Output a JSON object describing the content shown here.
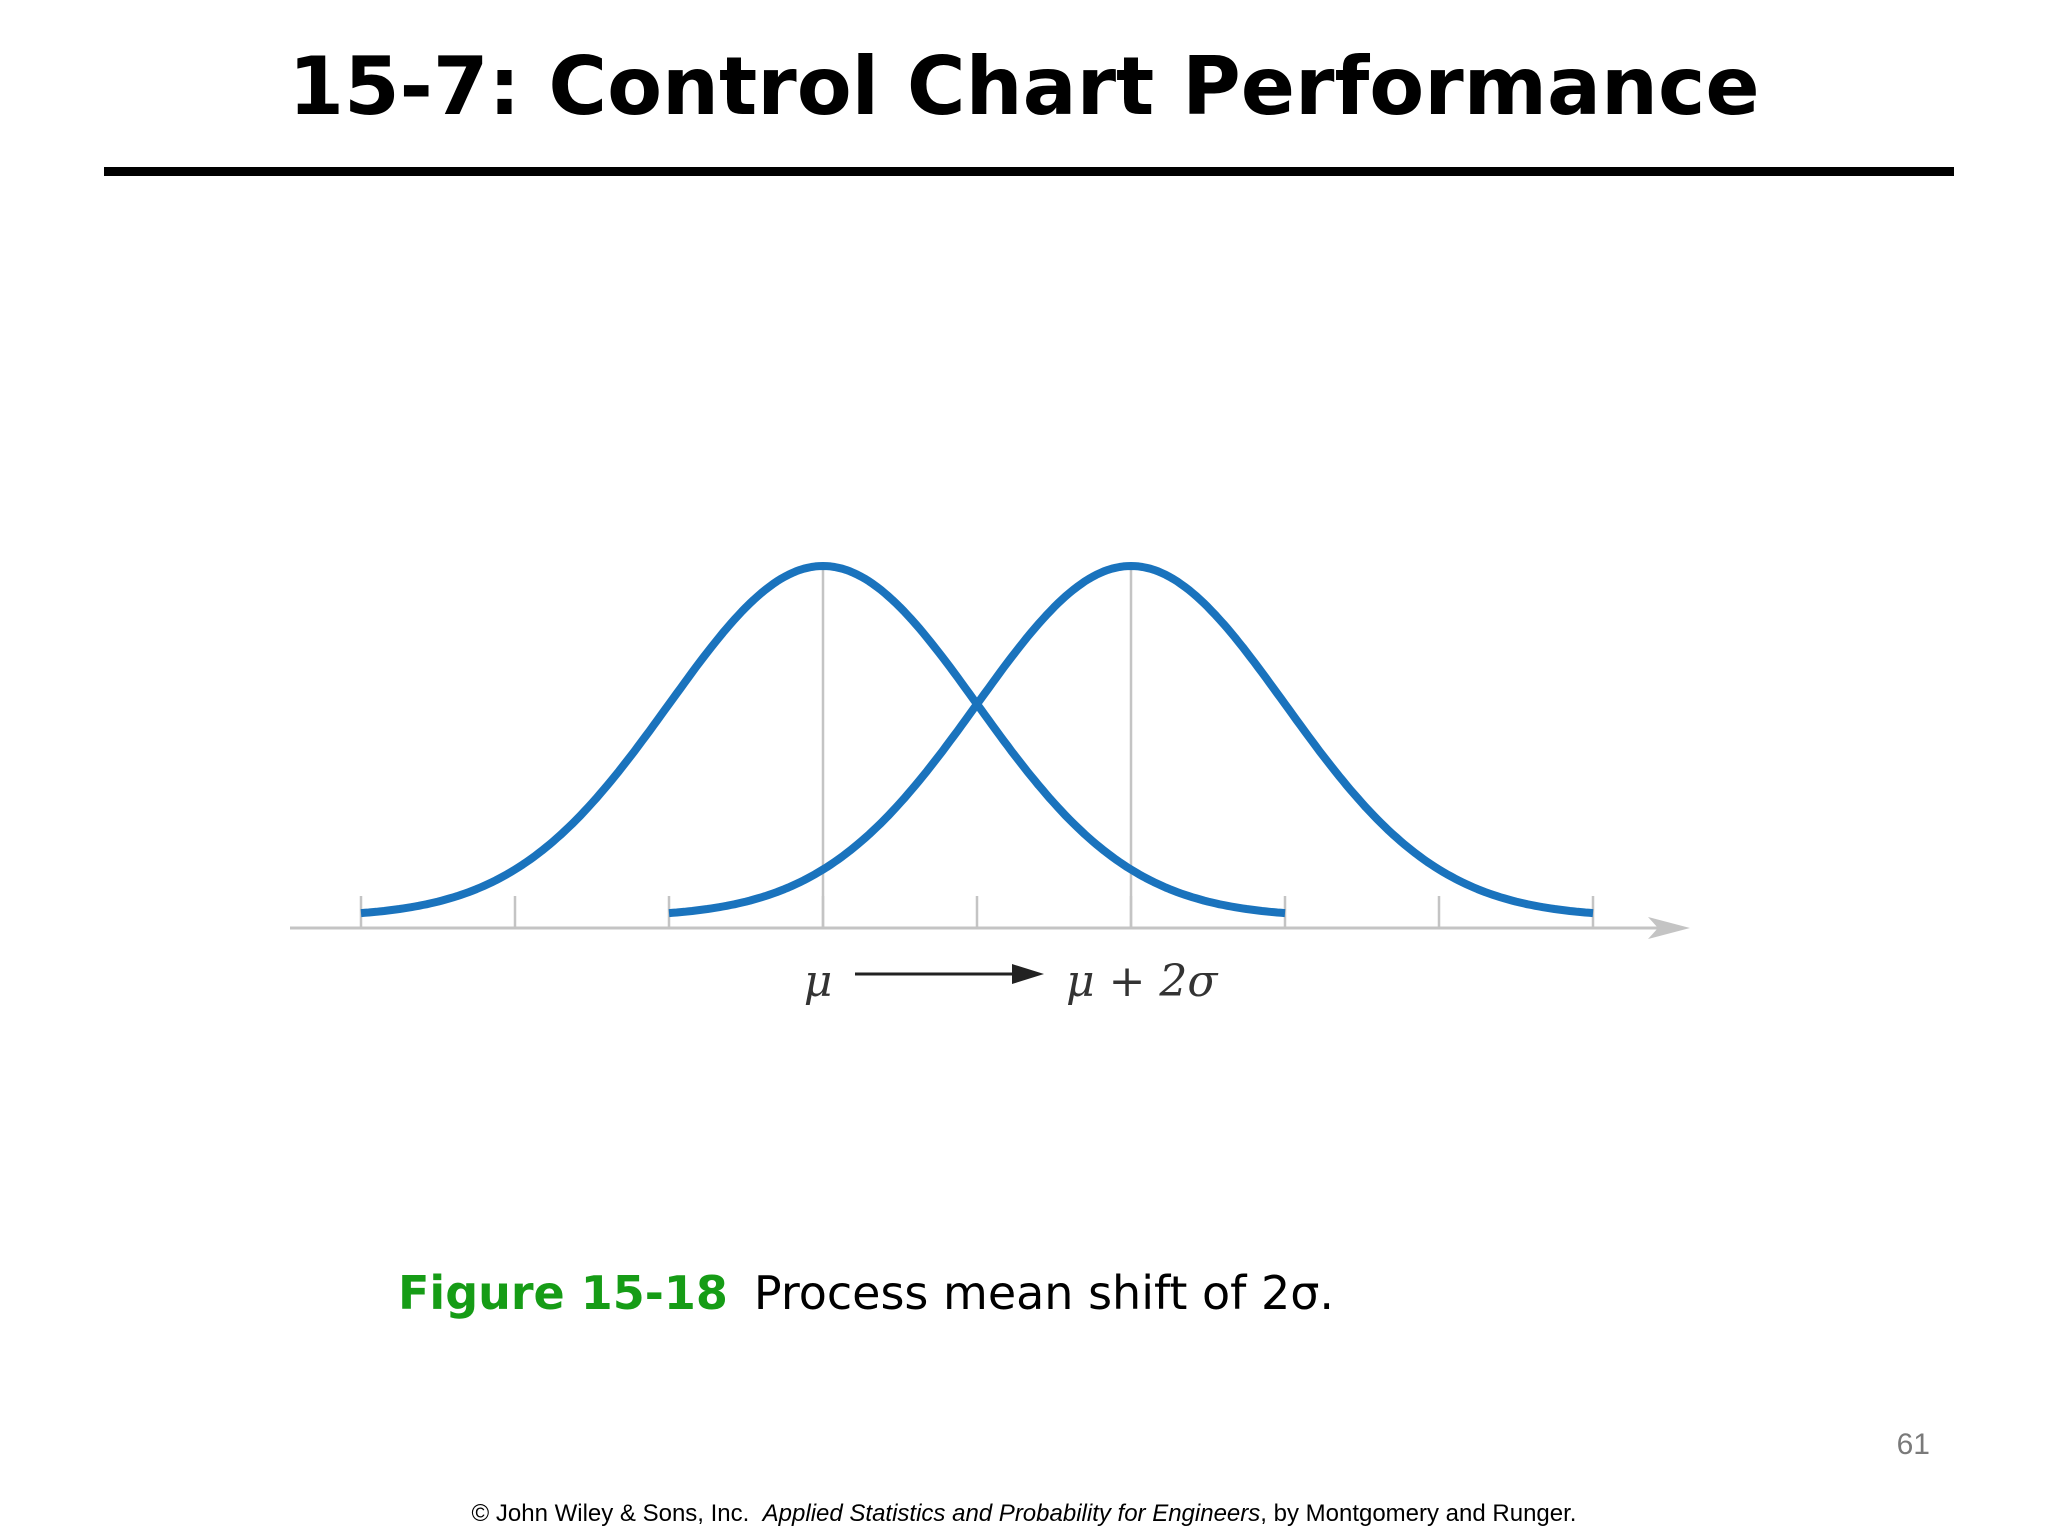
{
  "slide": {
    "title": "15-7: Control Chart Performance",
    "figure_label": "Figure 15-18",
    "figure_caption": "Process mean shift of 2σ.",
    "page_number": "61",
    "footer": {
      "prefix": "© John Wiley & Sons, Inc.",
      "book": "Applied Statistics and Probability for Engineers",
      "suffix": ", by Montgomery and Runger."
    }
  },
  "diagram": {
    "label_mu": "μ",
    "label_shifted": "μ + 2σ",
    "curve_color": "#1a73bd",
    "axis_color": "#c4c4c4",
    "curves": [
      {
        "name": "in-control-distribution",
        "mean_sigma": 0
      },
      {
        "name": "shifted-distribution",
        "mean_sigma": 2
      }
    ],
    "axis_ticks_sigma": [
      -3,
      -2,
      -1,
      0,
      1,
      2,
      3,
      4,
      5
    ]
  }
}
